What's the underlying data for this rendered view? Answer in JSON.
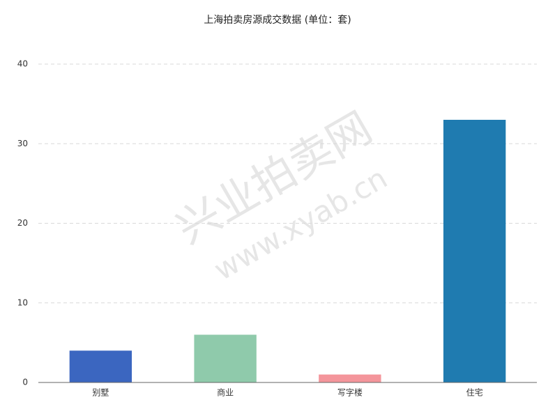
{
  "chart_data": {
    "type": "bar",
    "title": "上海拍卖房源成交数据 (单位：套)",
    "categories": [
      "别墅",
      "商业",
      "写字楼",
      "住宅"
    ],
    "values": [
      4,
      6,
      1,
      33
    ],
    "colors": [
      "#3b66c0",
      "#8fcaab",
      "#f4959b",
      "#1f7bb0"
    ],
    "ylim": [
      0,
      40
    ],
    "yticks": [
      0,
      10,
      20,
      30,
      40
    ],
    "grid": true,
    "watermark": [
      "兴业拍卖网",
      "www.xyab.cn"
    ]
  }
}
